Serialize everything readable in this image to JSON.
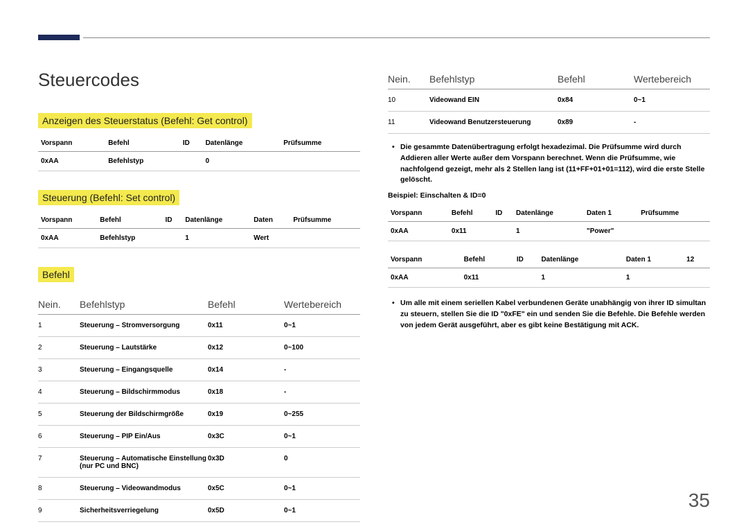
{
  "page_number": "35",
  "title": "Steuercodes",
  "section1": {
    "heading": "Anzeigen des Steuerstatus (Befehl: Get control)",
    "columns": [
      "Vorspann",
      "Befehl",
      "ID",
      "Datenlänge",
      "Prüfsumme"
    ],
    "rows": [
      [
        "0xAA",
        "Befehlstyp",
        "",
        "0",
        ""
      ]
    ]
  },
  "section2": {
    "heading": "Steuerung (Befehl: Set control)",
    "columns": [
      "Vorspann",
      "Befehl",
      "ID",
      "Datenlänge",
      "Daten",
      "Prüfsumme"
    ],
    "rows": [
      [
        "0xAA",
        "Befehlstyp",
        "",
        "1",
        "Wert",
        ""
      ]
    ]
  },
  "cmd_section_heading": "Befehl",
  "cmd_headers": {
    "c1": "Nein.",
    "c2": "Befehlstyp",
    "c3": "Befehl",
    "c4": "Wertebereich"
  },
  "cmds_left": [
    {
      "n": "1",
      "type": "Steuerung – Stromversorgung",
      "cmd": "0x11",
      "range": "0~1"
    },
    {
      "n": "2",
      "type": "Steuerung – Lautstärke",
      "cmd": "0x12",
      "range": "0~100"
    },
    {
      "n": "3",
      "type": "Steuerung – Eingangsquelle",
      "cmd": "0x14",
      "range": "-"
    },
    {
      "n": "4",
      "type": "Steuerung – Bildschirmmodus",
      "cmd": "0x18",
      "range": "-"
    },
    {
      "n": "5",
      "type": "Steuerung der Bildschirmgröße",
      "cmd": "0x19",
      "range": "0~255"
    },
    {
      "n": "6",
      "type": "Steuerung – PIP Ein/Aus",
      "cmd": "0x3C",
      "range": "0~1"
    },
    {
      "n": "7",
      "type": "Steuerung – Automatische Einstellung (nur PC und BNC)",
      "cmd": "0x3D",
      "range": "0"
    },
    {
      "n": "8",
      "type": "Steuerung – Videowandmodus",
      "cmd": "0x5C",
      "range": "0~1"
    },
    {
      "n": "9",
      "type": "Sicherheitsverriegelung",
      "cmd": "0x5D",
      "range": "0~1"
    }
  ],
  "cmds_right": [
    {
      "n": "10",
      "type": "Videowand EIN",
      "cmd": "0x84",
      "range": "0~1"
    },
    {
      "n": "11",
      "type": "Videowand Benutzersteuerung",
      "cmd": "0x89",
      "range": "-"
    }
  ],
  "note1": "Die gesammte Datenübertragung erfolgt hexadezimal. Die Prüfsumme wird durch Addieren aller Werte außer dem Vorspann berechnet. Wenn die Prüfsumme, wie nachfolgend gezeigt, mehr als 2 Stellen lang ist (11+FF+01+01=112), wird die erste Stelle gelöscht.",
  "example_label": "Beispiel: Einschalten & ID=0",
  "ex1": {
    "columns": [
      "Vorspann",
      "Befehl",
      "ID",
      "Datenlänge",
      "Daten 1",
      "Prüfsumme"
    ],
    "rows": [
      [
        "0xAA",
        "0x11",
        "",
        "1",
        "\"Power\"",
        ""
      ]
    ]
  },
  "ex2": {
    "columns": [
      "Vorspann",
      "Befehl",
      "ID",
      "Datenlänge",
      "Daten 1",
      "12"
    ],
    "rows": [
      [
        "0xAA",
        "0x11",
        "",
        "1",
        "1",
        ""
      ]
    ]
  },
  "note2": "Um alle mit einem seriellen Kabel verbundenen Geräte unabhängig von ihrer ID simultan zu steuern, stellen Sie die ID \"0xFE\" ein und senden Sie die Befehle. Die Befehle werden von jedem Gerät ausgeführt, aber es gibt keine Bestätigung mit ACK.",
  "colors": {
    "highlight": "#f4e94e",
    "topbar": "#1e2a5a",
    "text": "#000000",
    "rule": "#999999"
  }
}
